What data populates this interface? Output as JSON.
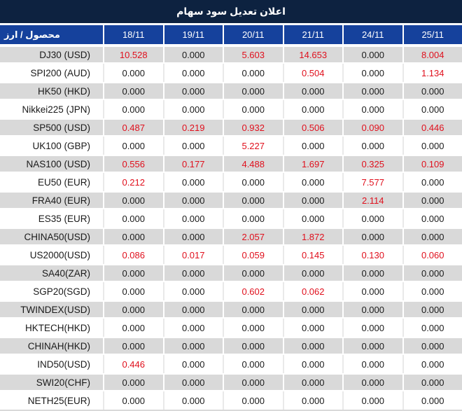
{
  "title": "اعلان تعديل سود سهام",
  "table": {
    "label_header": "محصول / ارز",
    "date_headers": [
      "18/11",
      "19/11",
      "20/11",
      "21/11",
      "24/11",
      "25/11"
    ],
    "rows": [
      {
        "label": "DJ30 (USD)",
        "values": [
          "10.528",
          "0.000",
          "5.603",
          "14.653",
          "0.000",
          "8.004"
        ]
      },
      {
        "label": "SPI200 (AUD)",
        "values": [
          "0.000",
          "0.000",
          "0.000",
          "0.504",
          "0.000",
          "1.134"
        ]
      },
      {
        "label": "HK50 (HKD)",
        "values": [
          "0.000",
          "0.000",
          "0.000",
          "0.000",
          "0.000",
          "0.000"
        ]
      },
      {
        "label": "Nikkei225 (JPN)",
        "values": [
          "0.000",
          "0.000",
          "0.000",
          "0.000",
          "0.000",
          "0.000"
        ]
      },
      {
        "label": "SP500 (USD)",
        "values": [
          "0.487",
          "0.219",
          "0.932",
          "0.506",
          "0.090",
          "0.446"
        ]
      },
      {
        "label": "UK100 (GBP)",
        "values": [
          "0.000",
          "0.000",
          "5.227",
          "0.000",
          "0.000",
          "0.000"
        ]
      },
      {
        "label": "NAS100 (USD)",
        "values": [
          "0.556",
          "0.177",
          "4.488",
          "1.697",
          "0.325",
          "0.109"
        ]
      },
      {
        "label": "EU50 (EUR)",
        "values": [
          "0.212",
          "0.000",
          "0.000",
          "0.000",
          "7.577",
          "0.000"
        ]
      },
      {
        "label": "FRA40 (EUR)",
        "values": [
          "0.000",
          "0.000",
          "0.000",
          "0.000",
          "2.114",
          "0.000"
        ]
      },
      {
        "label": "ES35 (EUR)",
        "values": [
          "0.000",
          "0.000",
          "0.000",
          "0.000",
          "0.000",
          "0.000"
        ]
      },
      {
        "label": "CHINA50(USD)",
        "values": [
          "0.000",
          "0.000",
          "2.057",
          "1.872",
          "0.000",
          "0.000"
        ]
      },
      {
        "label": "US2000(USD)",
        "values": [
          "0.086",
          "0.017",
          "0.059",
          "0.145",
          "0.130",
          "0.060"
        ]
      },
      {
        "label": "SA40(ZAR)",
        "values": [
          "0.000",
          "0.000",
          "0.000",
          "0.000",
          "0.000",
          "0.000"
        ]
      },
      {
        "label": "SGP20(SGD)",
        "values": [
          "0.000",
          "0.000",
          "0.602",
          "0.062",
          "0.000",
          "0.000"
        ]
      },
      {
        "label": "TWINDEX(USD)",
        "values": [
          "0.000",
          "0.000",
          "0.000",
          "0.000",
          "0.000",
          "0.000"
        ]
      },
      {
        "label": "HKTECH(HKD)",
        "values": [
          "0.000",
          "0.000",
          "0.000",
          "0.000",
          "0.000",
          "0.000"
        ]
      },
      {
        "label": "CHINAH(HKD)",
        "values": [
          "0.000",
          "0.000",
          "0.000",
          "0.000",
          "0.000",
          "0.000"
        ]
      },
      {
        "label": "IND50(USD)",
        "values": [
          "0.446",
          "0.000",
          "0.000",
          "0.000",
          "0.000",
          "0.000"
        ]
      },
      {
        "label": "SWI20(CHF)",
        "values": [
          "0.000",
          "0.000",
          "0.000",
          "0.000",
          "0.000",
          "0.000"
        ]
      },
      {
        "label": "NETH25(EUR)",
        "values": [
          "0.000",
          "0.000",
          "0.000",
          "0.000",
          "0.000",
          "0.000"
        ]
      }
    ]
  },
  "colors": {
    "title_bar_bg": "#0d2240",
    "header_bg": "#15419c",
    "row_gray": "#d9d9d9",
    "value_red": "#e0101d",
    "text_dark": "#1a1a1a"
  }
}
